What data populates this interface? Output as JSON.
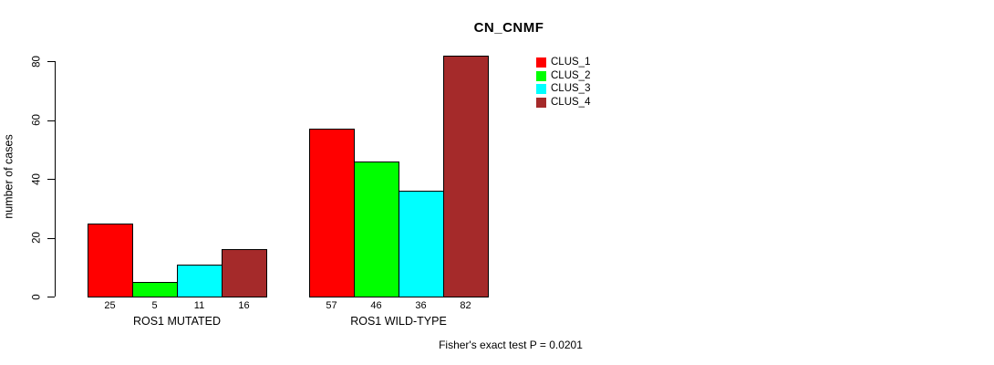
{
  "title": "CN_CNMF",
  "footer": "Fisher's exact test P = 0.0201",
  "chart_data": {
    "type": "bar",
    "title": "CN_CNMF",
    "xlabel": "",
    "ylabel": "number of cases",
    "categories": [
      "ROS1 MUTATED",
      "ROS1 WILD-TYPE"
    ],
    "series": [
      {
        "name": "CLUS_1",
        "color": "#FF0000",
        "values": [
          25,
          57
        ]
      },
      {
        "name": "CLUS_2",
        "color": "#00FF00",
        "values": [
          5,
          46
        ]
      },
      {
        "name": "CLUS_3",
        "color": "#00FFFF",
        "values": [
          11,
          36
        ]
      },
      {
        "name": "CLUS_4",
        "color": "#A52A2A",
        "values": [
          16,
          82
        ]
      }
    ],
    "bar_value_labels": [
      [
        "25",
        "5",
        "11",
        "16"
      ],
      [
        "57",
        "46",
        "36",
        "82"
      ]
    ],
    "yticks": [
      "0",
      "20",
      "40",
      "60",
      "80"
    ],
    "ylim": [
      0,
      85
    ],
    "grid": false,
    "legend_position": "top-right",
    "legend_entries": [
      "CLUS_1",
      "CLUS_2",
      "CLUS_3",
      "CLUS_4"
    ],
    "annotation": "Fisher's exact test P = 0.0201"
  }
}
